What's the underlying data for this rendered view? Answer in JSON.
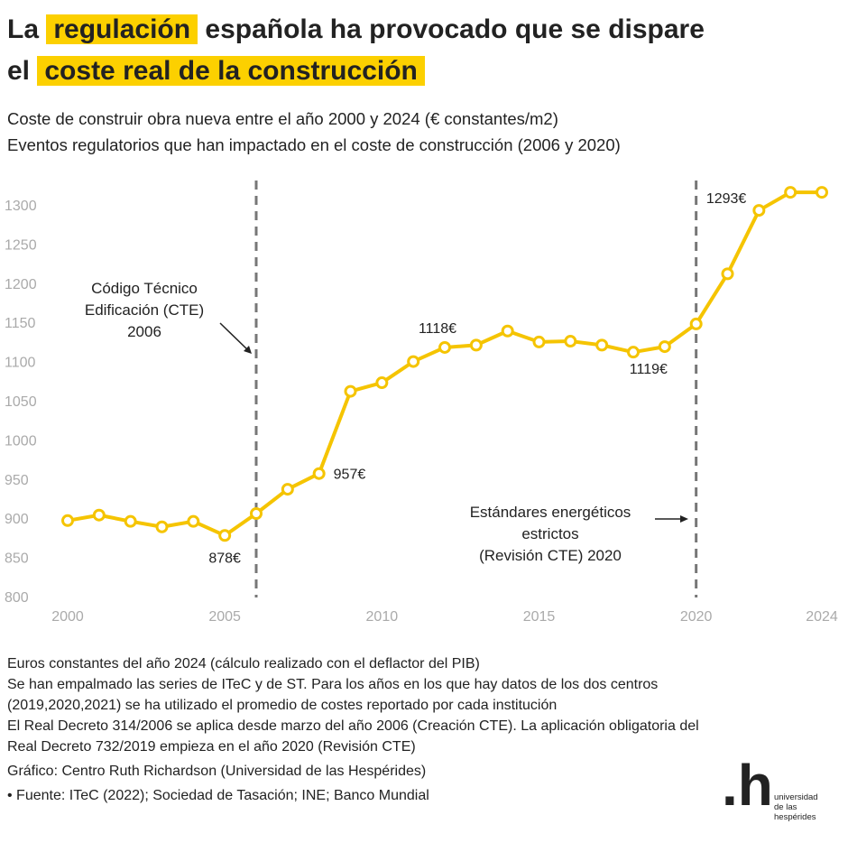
{
  "title": {
    "part1": "La",
    "hl1": "regulación",
    "part2": "española ha provocado que se dispare",
    "part3": "el",
    "hl2": "coste real de la construcción"
  },
  "subtitle1": "Coste de construir obra nueva entre el año 2000 y 2024 (€ constantes/m2)",
  "subtitle2": "Eventos regulatorios que han impactado en el coste de construcción (2006 y 2020)",
  "colors": {
    "line": "#f5c400",
    "highlight": "#fcd000",
    "axis_text": "#aaaaaa",
    "event_line": "#777777"
  },
  "chart_data": {
    "type": "line",
    "title": "Coste de construir obra nueva (€ constantes/m2)",
    "x": [
      2000,
      2001,
      2002,
      2003,
      2004,
      2005,
      2006,
      2007,
      2008,
      2009,
      2010,
      2011,
      2012,
      2013,
      2014,
      2015,
      2016,
      2017,
      2018,
      2019,
      2020,
      2021,
      2022,
      2023,
      2024
    ],
    "values": [
      897,
      904,
      896,
      889,
      896,
      878,
      906,
      937,
      957,
      1062,
      1073,
      1100,
      1118,
      1121,
      1139,
      1125,
      1126,
      1121,
      1112,
      1119,
      1148,
      1212,
      1293,
      1316,
      1316
    ],
    "ylim": [
      800,
      1320
    ],
    "yticks": [
      "800",
      "850",
      "900",
      "950",
      "1000",
      "1050",
      "1100",
      "1150",
      "1200",
      "1250",
      "1300"
    ],
    "xticks": [
      "2000",
      "2005",
      "2010",
      "2015",
      "2020",
      "2024"
    ],
    "data_labels": [
      {
        "year": 2005,
        "text": "878€"
      },
      {
        "year": 2008,
        "text": "957€"
      },
      {
        "year": 2012,
        "text": "1118€"
      },
      {
        "year": 2019,
        "text": "1119€"
      },
      {
        "year": 2022,
        "text": "1293€"
      }
    ],
    "events": [
      {
        "year": 2006,
        "label": [
          "Código Técnico",
          "Edificación (CTE)",
          "2006"
        ]
      },
      {
        "year": 2020,
        "label": [
          "Estándares energéticos",
          "estrictos",
          "(Revisión CTE) 2020"
        ]
      }
    ],
    "grid": false
  },
  "notes": [
    "Euros constantes del año 2024 (cálculo realizado con el deflactor del PIB)",
    "Se han empalmado las series de ITeC y de ST. Para los años en los que hay datos de los dos centros (2019,2020,2021) se ha utilizado el promedio de costes reportado por cada institución",
    "El Real Decreto 314/2006 se aplica desde marzo del año 2006 (Creación CTE). La aplicación obligatoria del Real Decreto 732/2019 empieza en el año 2020 (Revisión CTE)"
  ],
  "credit": "Gráfico: Centro Ruth Richardson (Universidad de las Hespérides)",
  "source": "• Fuente: ITeC (2022); Sociedad de Tasación; INE; Banco Mundial",
  "logo": {
    "mark": ".h",
    "text": [
      "universidad",
      "de las",
      "hespérides"
    ]
  }
}
